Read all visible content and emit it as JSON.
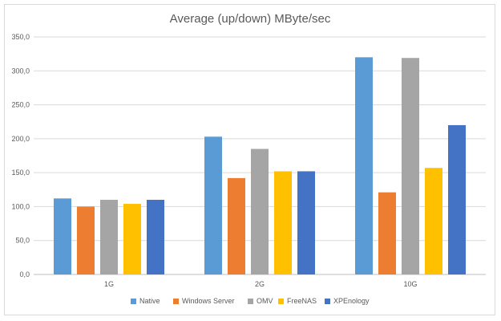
{
  "chart_data": {
    "type": "bar",
    "title": "Average (up/down) MByte/sec",
    "categories": [
      "1G",
      "2G",
      "10G"
    ],
    "series": [
      {
        "name": "Native",
        "color": "#5b9bd5",
        "values": [
          112,
          203,
          320
        ]
      },
      {
        "name": "Windows Server",
        "color": "#ed7d31",
        "values": [
          100,
          142,
          121
        ]
      },
      {
        "name": "OMV",
        "color": "#a5a5a5",
        "values": [
          110,
          185,
          319
        ]
      },
      {
        "name": "FreeNAS",
        "color": "#ffc000",
        "values": [
          104,
          152,
          157
        ]
      },
      {
        "name": "XPEnology",
        "color": "#4472c4",
        "values": [
          110,
          152,
          220
        ]
      }
    ],
    "ylim": [
      0,
      350
    ],
    "yticks": [
      "0,0",
      "50,0",
      "100,0",
      "150,0",
      "200,0",
      "250,0",
      "300,0",
      "350,0"
    ],
    "grid": true,
    "legend": "bottom"
  }
}
